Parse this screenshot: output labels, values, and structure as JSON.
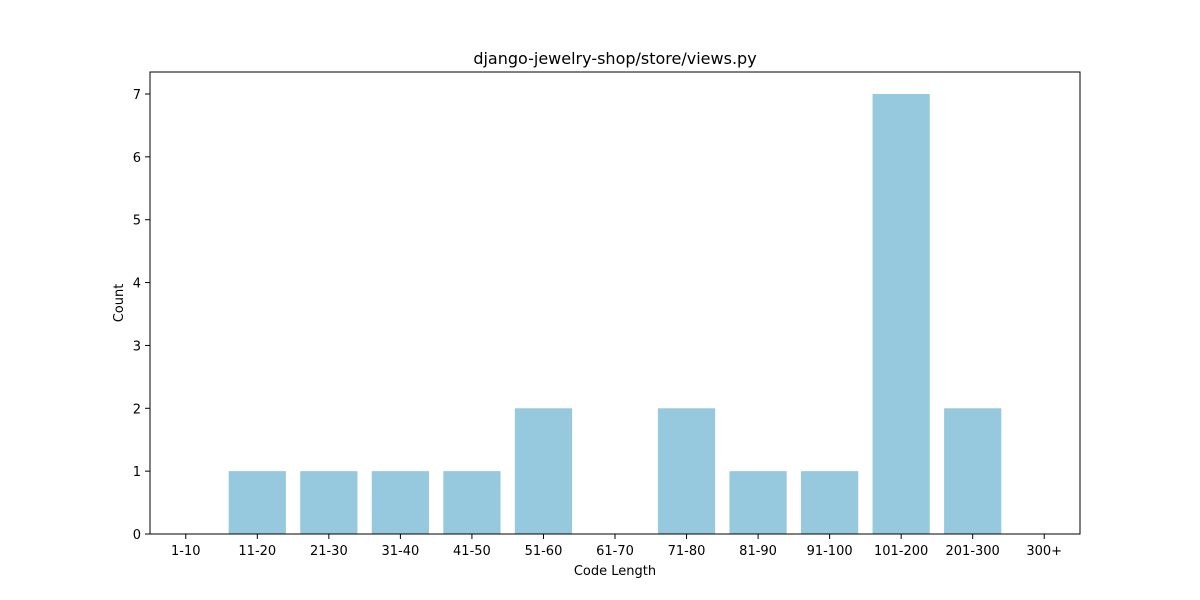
{
  "chart_data": {
    "type": "bar",
    "title": "django-jewelry-shop/store/views.py",
    "xlabel": "Code Length",
    "ylabel": "Count",
    "categories": [
      "1-10",
      "11-20",
      "21-30",
      "31-40",
      "41-50",
      "51-60",
      "61-70",
      "71-80",
      "81-90",
      "91-100",
      "101-200",
      "201-300",
      "300+"
    ],
    "values": [
      0,
      1,
      1,
      1,
      1,
      2,
      0,
      2,
      1,
      1,
      7,
      2,
      0
    ],
    "ylim": [
      0,
      7.35
    ],
    "yticks": [
      0,
      1,
      2,
      3,
      4,
      5,
      6,
      7
    ],
    "bar_color": "#96c9dd",
    "grid": false,
    "legend": "none"
  }
}
